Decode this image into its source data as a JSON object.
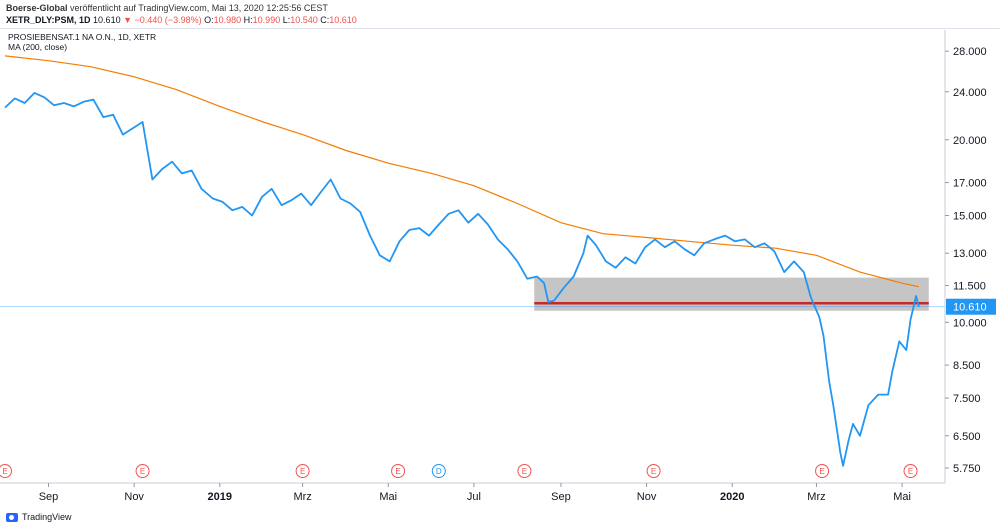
{
  "header": {
    "publisher": "Boerse-Global",
    "published_text": "veröffentlicht auf TradingView.com, Mai 13, 2020 12:25:56 CEST",
    "symbol": "XETR_DLY:PSM, 1D",
    "last": "10.610",
    "change": "−0.440 (−3.98%)",
    "open_label": "O:",
    "open": "10.980",
    "high_label": "H:",
    "high": "10.990",
    "low_label": "L:",
    "low": "10.540",
    "close_label": "C:",
    "close": "10.610"
  },
  "footer": {
    "brand": "TradingView"
  },
  "colors": {
    "price": "#2196f3",
    "ma": "#f57c00",
    "support_line": "#c62828",
    "support_zone": "#9e9e9e",
    "last_price_label": "#2196f3",
    "event_marker": "#ef5350",
    "dividend_marker": "#2196f3"
  },
  "chart_data": {
    "type": "line",
    "title": "PROSIEBENSAT.1 NA O.N., 1D, XETR",
    "indicator_label": "MA (200, close)",
    "y_scale": "log",
    "y_ticks": [
      5.75,
      6.5,
      7.5,
      8.5,
      10.0,
      11.5,
      13.0,
      15.0,
      17.0,
      20.0,
      24.0,
      28.0
    ],
    "y_tick_labels": [
      "5.750",
      "6.500",
      "7.500",
      "8.500",
      "10.000",
      "11.500",
      "13.000",
      "15.000",
      "17.000",
      "20.000",
      "24.000",
      "28.000"
    ],
    "x_ticks": [
      "2018-09-01",
      "2018-11-01",
      "2019-01-01",
      "2019-03-01",
      "2019-05-01",
      "2019-07-01",
      "2019-09-01",
      "2019-11-01",
      "2020-01-01",
      "2020-03-01",
      "2020-05-01"
    ],
    "x_tick_labels": [
      "Sep",
      "Nov",
      "2019",
      "Mrz",
      "Mai",
      "Jul",
      "Sep",
      "Nov",
      "2020",
      "Mrz",
      "Mai"
    ],
    "x_range": [
      "2018-08-01",
      "2020-05-28"
    ],
    "last_price_label": "10.610",
    "series": [
      {
        "name": "PROSIEBENSAT.1 NA O.N.",
        "points": [
          [
            "2018-08-01",
            22.6
          ],
          [
            "2018-08-08",
            23.4
          ],
          [
            "2018-08-15",
            23.0
          ],
          [
            "2018-08-22",
            23.9
          ],
          [
            "2018-08-29",
            23.5
          ],
          [
            "2018-09-05",
            22.8
          ],
          [
            "2018-09-12",
            23.0
          ],
          [
            "2018-09-19",
            22.7
          ],
          [
            "2018-09-26",
            23.1
          ],
          [
            "2018-10-03",
            23.3
          ],
          [
            "2018-10-10",
            21.8
          ],
          [
            "2018-10-17",
            22.0
          ],
          [
            "2018-10-24",
            20.4
          ],
          [
            "2018-10-31",
            20.9
          ],
          [
            "2018-11-07",
            21.4
          ],
          [
            "2018-11-14",
            17.2
          ],
          [
            "2018-11-21",
            17.9
          ],
          [
            "2018-11-28",
            18.4
          ],
          [
            "2018-12-05",
            17.6
          ],
          [
            "2018-12-12",
            17.8
          ],
          [
            "2018-12-19",
            16.6
          ],
          [
            "2018-12-27",
            16.0
          ],
          [
            "2019-01-03",
            15.8
          ],
          [
            "2019-01-10",
            15.3
          ],
          [
            "2019-01-17",
            15.5
          ],
          [
            "2019-01-24",
            15.0
          ],
          [
            "2019-01-31",
            16.1
          ],
          [
            "2019-02-07",
            16.6
          ],
          [
            "2019-02-14",
            15.6
          ],
          [
            "2019-02-21",
            15.9
          ],
          [
            "2019-02-28",
            16.3
          ],
          [
            "2019-03-07",
            15.6
          ],
          [
            "2019-03-14",
            16.4
          ],
          [
            "2019-03-21",
            17.2
          ],
          [
            "2019-03-28",
            16.0
          ],
          [
            "2019-04-04",
            15.7
          ],
          [
            "2019-04-11",
            15.2
          ],
          [
            "2019-04-18",
            13.9
          ],
          [
            "2019-04-25",
            12.9
          ],
          [
            "2019-05-02",
            12.6
          ],
          [
            "2019-05-09",
            13.6
          ],
          [
            "2019-05-16",
            14.2
          ],
          [
            "2019-05-23",
            14.3
          ],
          [
            "2019-05-30",
            13.9
          ],
          [
            "2019-06-06",
            14.5
          ],
          [
            "2019-06-13",
            15.1
          ],
          [
            "2019-06-20",
            15.3
          ],
          [
            "2019-06-27",
            14.6
          ],
          [
            "2019-07-04",
            15.1
          ],
          [
            "2019-07-11",
            14.5
          ],
          [
            "2019-07-18",
            13.7
          ],
          [
            "2019-07-25",
            13.2
          ],
          [
            "2019-08-01",
            12.6
          ],
          [
            "2019-08-08",
            11.8
          ],
          [
            "2019-08-15",
            11.9
          ],
          [
            "2019-08-20",
            11.6
          ],
          [
            "2019-08-23",
            10.8
          ],
          [
            "2019-08-27",
            10.85
          ],
          [
            "2019-09-03",
            11.4
          ],
          [
            "2019-09-10",
            11.9
          ],
          [
            "2019-09-17",
            13.0
          ],
          [
            "2019-09-20",
            13.9
          ],
          [
            "2019-09-26",
            13.4
          ],
          [
            "2019-10-03",
            12.6
          ],
          [
            "2019-10-10",
            12.3
          ],
          [
            "2019-10-17",
            12.8
          ],
          [
            "2019-10-24",
            12.5
          ],
          [
            "2019-10-31",
            13.3
          ],
          [
            "2019-11-07",
            13.7
          ],
          [
            "2019-11-14",
            13.3
          ],
          [
            "2019-11-21",
            13.6
          ],
          [
            "2019-11-28",
            13.2
          ],
          [
            "2019-12-05",
            12.9
          ],
          [
            "2019-12-12",
            13.5
          ],
          [
            "2019-12-19",
            13.7
          ],
          [
            "2019-12-27",
            13.9
          ],
          [
            "2020-01-03",
            13.6
          ],
          [
            "2020-01-10",
            13.7
          ],
          [
            "2020-01-17",
            13.3
          ],
          [
            "2020-01-24",
            13.5
          ],
          [
            "2020-01-31",
            13.1
          ],
          [
            "2020-02-07",
            12.1
          ],
          [
            "2020-02-14",
            12.6
          ],
          [
            "2020-02-21",
            12.1
          ],
          [
            "2020-02-26",
            11.0
          ],
          [
            "2020-03-03",
            10.2
          ],
          [
            "2020-03-06",
            9.5
          ],
          [
            "2020-03-10",
            8.0
          ],
          [
            "2020-03-13",
            7.3
          ],
          [
            "2020-03-18",
            6.1
          ],
          [
            "2020-03-20",
            5.8
          ],
          [
            "2020-03-24",
            6.4
          ],
          [
            "2020-03-27",
            6.8
          ],
          [
            "2020-04-01",
            6.5
          ],
          [
            "2020-04-07",
            7.3
          ],
          [
            "2020-04-14",
            7.6
          ],
          [
            "2020-04-21",
            7.6
          ],
          [
            "2020-04-24",
            8.3
          ],
          [
            "2020-04-29",
            9.3
          ],
          [
            "2020-05-04",
            9.0
          ],
          [
            "2020-05-07",
            10.1
          ],
          [
            "2020-05-11",
            11.05
          ],
          [
            "2020-05-13",
            10.61
          ]
        ]
      },
      {
        "name": "MA (200, close)",
        "points": [
          [
            "2018-08-01",
            27.5
          ],
          [
            "2018-09-01",
            27.0
          ],
          [
            "2018-10-01",
            26.4
          ],
          [
            "2018-11-01",
            25.4
          ],
          [
            "2018-12-01",
            24.2
          ],
          [
            "2019-01-01",
            22.7
          ],
          [
            "2019-02-01",
            21.4
          ],
          [
            "2019-03-01",
            20.4
          ],
          [
            "2019-04-01",
            19.2
          ],
          [
            "2019-05-01",
            18.3
          ],
          [
            "2019-06-01",
            17.6
          ],
          [
            "2019-07-01",
            16.8
          ],
          [
            "2019-08-01",
            15.7
          ],
          [
            "2019-09-01",
            14.6
          ],
          [
            "2019-10-01",
            14.0
          ],
          [
            "2019-11-01",
            13.8
          ],
          [
            "2019-12-01",
            13.6
          ],
          [
            "2020-01-01",
            13.4
          ],
          [
            "2020-02-01",
            13.25
          ],
          [
            "2020-03-01",
            12.9
          ],
          [
            "2020-04-01",
            12.1
          ],
          [
            "2020-05-01",
            11.6
          ],
          [
            "2020-05-13",
            11.45
          ]
        ]
      }
    ],
    "annotations": {
      "support_zone": {
        "from": "2019-08-13",
        "to": "2020-05-20",
        "low": 10.45,
        "high": 11.85
      },
      "support_line": {
        "from": "2019-08-13",
        "to": "2020-05-20",
        "value": 10.75
      },
      "event_markers": [
        {
          "date": "2018-08-01",
          "label": "E"
        },
        {
          "date": "2018-11-07",
          "label": "E"
        },
        {
          "date": "2019-03-01",
          "label": "E"
        },
        {
          "date": "2019-05-08",
          "label": "E"
        },
        {
          "date": "2019-06-06",
          "label": "D"
        },
        {
          "date": "2019-08-06",
          "label": "E"
        },
        {
          "date": "2019-11-06",
          "label": "E"
        },
        {
          "date": "2020-03-05",
          "label": "E"
        },
        {
          "date": "2020-05-07",
          "label": "E"
        }
      ]
    }
  }
}
